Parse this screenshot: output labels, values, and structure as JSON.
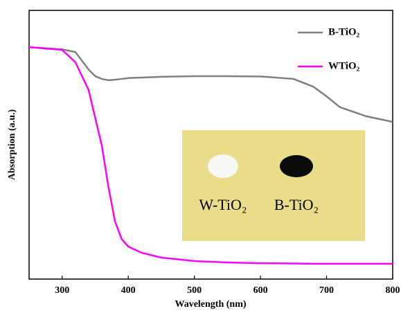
{
  "chart_data": {
    "type": "line",
    "xlabel": "Wavelength (nm)",
    "ylabel": "Absorption (a.u.)",
    "x": [
      250,
      300,
      320,
      340,
      350,
      360,
      370,
      380,
      390,
      400,
      420,
      450,
      500,
      550,
      600,
      650,
      680,
      700,
      720,
      760,
      800
    ],
    "series": [
      {
        "name": "B-TiO₂",
        "color": "#7f7f7f",
        "values": [
          0.863,
          0.855,
          0.845,
          0.78,
          0.755,
          0.745,
          0.74,
          0.742,
          0.745,
          0.748,
          0.75,
          0.753,
          0.755,
          0.755,
          0.754,
          0.745,
          0.716,
          0.68,
          0.64,
          0.606,
          0.585
        ]
      },
      {
        "name": "WTiO₂",
        "color": "#ff00ff",
        "values": [
          0.863,
          0.853,
          0.807,
          0.704,
          0.6,
          0.497,
          0.343,
          0.214,
          0.149,
          0.121,
          0.098,
          0.08,
          0.067,
          0.062,
          0.059,
          0.058,
          0.057,
          0.057,
          0.057,
          0.057,
          0.057
        ]
      }
    ],
    "xlim": [
      250,
      800
    ],
    "xticks": [
      300,
      400,
      500,
      600,
      700,
      800
    ],
    "ylim": [
      0,
      1
    ],
    "legend": "upper right"
  },
  "inset": {
    "labels": [
      "W-TiO₂",
      "B-TiO₂"
    ]
  }
}
